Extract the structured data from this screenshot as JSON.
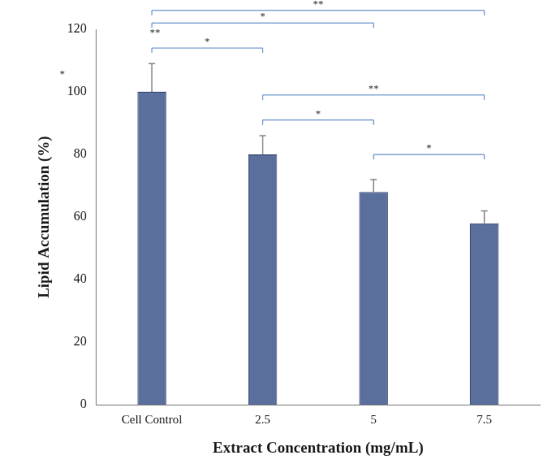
{
  "chart_data": {
    "type": "bar",
    "x_label": "Extract Concentration (mg/mL)",
    "y_label": "Lipid Accumulation (%)",
    "categories": [
      "Cell Control",
      "2.5",
      "5",
      "7.5"
    ],
    "values": [
      100,
      80,
      68,
      58
    ],
    "errors": [
      9,
      6,
      4,
      4
    ],
    "color": "#5b6f9c",
    "ylim": [
      0,
      120
    ],
    "yticks": [
      0,
      20,
      40,
      60,
      80,
      100,
      120
    ],
    "grid": false,
    "brackets": [
      {
        "from": "Cell Control",
        "to": "7.5",
        "y": 126,
        "label": "**"
      },
      {
        "from": "Cell Control",
        "to": "5",
        "y": 122,
        "label": "*"
      },
      {
        "from": "Cell Control",
        "to": "2.5",
        "y": 114,
        "label": "*"
      },
      {
        "from": "2.5",
        "to": "7.5",
        "y": 99,
        "label": "**"
      },
      {
        "from": "2.5",
        "to": "5",
        "y": 91,
        "label": "*"
      },
      {
        "from": "5",
        "to": "7.5",
        "y": 80,
        "label": "*"
      }
    ],
    "annotations": [
      {
        "text": "**",
        "category": "Cell Control",
        "y": 117
      },
      {
        "text": "*",
        "y": 104
      }
    ]
  }
}
